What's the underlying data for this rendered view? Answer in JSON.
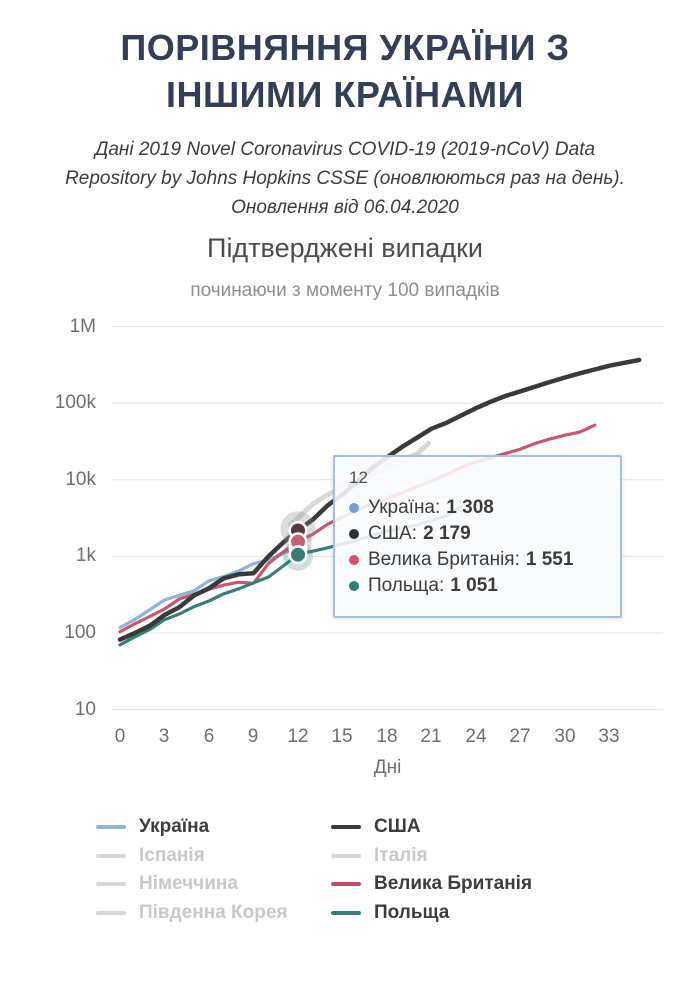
{
  "header": {
    "title_lines": [
      "ПОРІВНЯННЯ УКРАЇНИ З",
      "ІНШИМИ КРАЇНАМИ"
    ],
    "subtitle_lines": [
      "Дані 2019 Novel Coronavirus COVID-19 (2019-nCoV) Data",
      "Repository by Johns Hopkins CSSE (оновлюються раз на день).",
      "Оновлення від 06.04.2020"
    ]
  },
  "chart_data": {
    "type": "line",
    "title": "Підтверджені випадки",
    "subtitle": "починаючи з моменту 100 випадків",
    "xlabel": "Дні",
    "x_unit": "днів з моменту 100 випадків",
    "y_scale": "log",
    "ylim": [
      10,
      1000000
    ],
    "xlim": [
      0,
      36.5
    ],
    "grid": "horizontal",
    "x_ticks": [
      0,
      3,
      6,
      9,
      12,
      15,
      18,
      21,
      24,
      27,
      30,
      33
    ],
    "y_ticks": [
      {
        "label": "1M",
        "value": 1000000
      },
      {
        "label": "100k",
        "value": 100000
      },
      {
        "label": "10k",
        "value": 10000
      },
      {
        "label": "1k",
        "value": 1000
      },
      {
        "label": "100",
        "value": 100
      },
      {
        "label": "10",
        "value": 10
      }
    ],
    "series": [
      {
        "name": "Іспанія",
        "color": "#d8d8d8",
        "width": 5,
        "dimmed": true,
        "points": [
          [
            11.5,
            2600
          ],
          [
            13,
            4800
          ],
          [
            14,
            6400
          ],
          [
            15,
            8000
          ],
          [
            16,
            9900
          ],
          [
            17,
            11700
          ],
          [
            18,
            14800
          ],
          [
            19,
            18000
          ],
          [
            20,
            21600
          ],
          [
            20.8,
            30000
          ]
        ]
      },
      {
        "name": "Україна",
        "color": "#8fb4d6",
        "width": 3.2,
        "points": [
          [
            0,
            118
          ],
          [
            1,
            150
          ],
          [
            2,
            200
          ],
          [
            3,
            270
          ],
          [
            4,
            311
          ],
          [
            5,
            357
          ],
          [
            6,
            480
          ],
          [
            7,
            545
          ],
          [
            8,
            645
          ],
          [
            9,
            804
          ],
          [
            10,
            897
          ],
          [
            11,
            1096
          ],
          [
            12,
            1308
          ]
        ]
      },
      {
        "name": "Велика Британія",
        "color": "#c9566f",
        "width": 3.2,
        "points": [
          [
            0,
            104
          ],
          [
            1,
            132
          ],
          [
            2,
            164
          ],
          [
            3,
            206
          ],
          [
            4,
            278
          ],
          [
            5,
            321
          ],
          [
            6,
            373
          ],
          [
            7,
            422
          ],
          [
            8,
            460
          ],
          [
            9,
            446
          ],
          [
            10,
            802
          ],
          [
            11,
            1144
          ],
          [
            12,
            1551
          ],
          [
            13,
            1950
          ],
          [
            14,
            2630
          ],
          [
            15,
            3270
          ],
          [
            16,
            4010
          ],
          [
            17,
            4900
          ],
          [
            18,
            5740
          ],
          [
            19,
            6730
          ],
          [
            20,
            8080
          ],
          [
            21,
            9640
          ],
          [
            22,
            11660
          ],
          [
            23,
            14550
          ],
          [
            24,
            17090
          ],
          [
            25,
            19520
          ],
          [
            26,
            22140
          ],
          [
            27,
            25150
          ],
          [
            28,
            29870
          ],
          [
            29,
            34170
          ],
          [
            30,
            38170
          ],
          [
            31,
            41900
          ],
          [
            32,
            51610
          ]
        ]
      },
      {
        "name": "Польща",
        "color": "#357f77",
        "width": 3.2,
        "points": [
          [
            0,
            70
          ],
          [
            1,
            89
          ],
          [
            2,
            111
          ],
          [
            3,
            149
          ],
          [
            4,
            177
          ],
          [
            5,
            221
          ],
          [
            6,
            262
          ],
          [
            7,
            325
          ],
          [
            8,
            378
          ],
          [
            9,
            452
          ],
          [
            10,
            536
          ],
          [
            11,
            749
          ],
          [
            12,
            1051
          ],
          [
            13,
            1168
          ],
          [
            14,
            1294
          ],
          [
            15,
            1454
          ],
          [
            16,
            1638
          ],
          [
            17,
            1862
          ],
          [
            18,
            2132
          ],
          [
            19,
            2347
          ],
          [
            20,
            2554
          ],
          [
            21,
            2946
          ],
          [
            22,
            3383
          ],
          [
            23,
            4413
          ]
        ]
      },
      {
        "name": "США",
        "color": "#3a3a3a",
        "width": 4.5,
        "points": [
          [
            0,
            82
          ],
          [
            1,
            100
          ],
          [
            2,
            124
          ],
          [
            3,
            172
          ],
          [
            4,
            217
          ],
          [
            5,
            310
          ],
          [
            6,
            383
          ],
          [
            7,
            518
          ],
          [
            8,
            583
          ],
          [
            9,
            604
          ],
          [
            10,
            994
          ],
          [
            11,
            1520
          ],
          [
            12,
            2179
          ],
          [
            13,
            3019
          ],
          [
            14,
            4632
          ],
          [
            15,
            6421
          ],
          [
            16,
            9415
          ],
          [
            17,
            14250
          ],
          [
            18,
            19624
          ],
          [
            19,
            26747
          ],
          [
            20,
            35206
          ],
          [
            21,
            46442
          ],
          [
            22,
            55231
          ],
          [
            23,
            69194
          ],
          [
            24,
            85991
          ],
          [
            25,
            104686
          ],
          [
            26,
            124665
          ],
          [
            27,
            143025
          ],
          [
            28,
            164620
          ],
          [
            29,
            189618
          ],
          [
            30,
            216722
          ],
          [
            31,
            245373
          ],
          [
            32,
            275586
          ],
          [
            33,
            308850
          ],
          [
            34,
            337072
          ],
          [
            35,
            366614
          ]
        ]
      }
    ],
    "highlight": {
      "day": 12,
      "halos": [
        {
          "value": 2300,
          "r": 17.5,
          "color": "rgba(140,140,140,0.30)"
        },
        {
          "value": 1500,
          "r": 14,
          "color": "rgba(198,95,117,0.22)"
        },
        {
          "value": 1020,
          "r": 15,
          "color": "rgba(53,127,119,0.25)"
        }
      ],
      "dots": [
        {
          "name": "Україна",
          "value": 1308,
          "color": "#6ca0d8"
        },
        {
          "name": "США",
          "value": 2179,
          "color": "#553a44"
        },
        {
          "name": "Велика Британія",
          "value": 1551,
          "color": "#c65f75"
        },
        {
          "name": "Польща",
          "value": 1051,
          "color": "#357f77"
        }
      ]
    }
  },
  "tooltip": {
    "day": "12",
    "rows": [
      {
        "label": "Україна:",
        "value": "1 308",
        "color": "#6ca0d8"
      },
      {
        "label": "США:",
        "value": "2 179",
        "color": "#2f2f2f"
      },
      {
        "label": "Велика Британія:",
        "value": "1 551",
        "color": "#d4526e"
      },
      {
        "label": "Польща:",
        "value": "1 051",
        "color": "#2e7f74"
      }
    ]
  },
  "legend": {
    "col1": [
      {
        "label": "Україна",
        "color": "#8fb4d6",
        "label_color": "#3d3d3d",
        "active": true
      },
      {
        "label": "Іспанія",
        "color": "#d6d6d6",
        "label_color": "#c9c9c9",
        "active": false
      },
      {
        "label": "Німеччина",
        "color": "#d6d6d6",
        "label_color": "#c9c9c9",
        "active": false
      },
      {
        "label": "Південна Корея",
        "color": "#d6d6d6",
        "label_color": "#c9c9c9",
        "active": false
      }
    ],
    "col2": [
      {
        "label": "США",
        "color": "#3a3a3a",
        "label_color": "#3d3d3d",
        "active": true
      },
      {
        "label": "Італія",
        "color": "#d6d6d6",
        "label_color": "#c9c9c9",
        "active": false
      },
      {
        "label": "Велика Британія",
        "color": "#c04a67",
        "label_color": "#3d3d3d",
        "active": true
      },
      {
        "label": "Польща",
        "color": "#357f77",
        "label_color": "#3d3d3d",
        "active": true
      }
    ]
  }
}
